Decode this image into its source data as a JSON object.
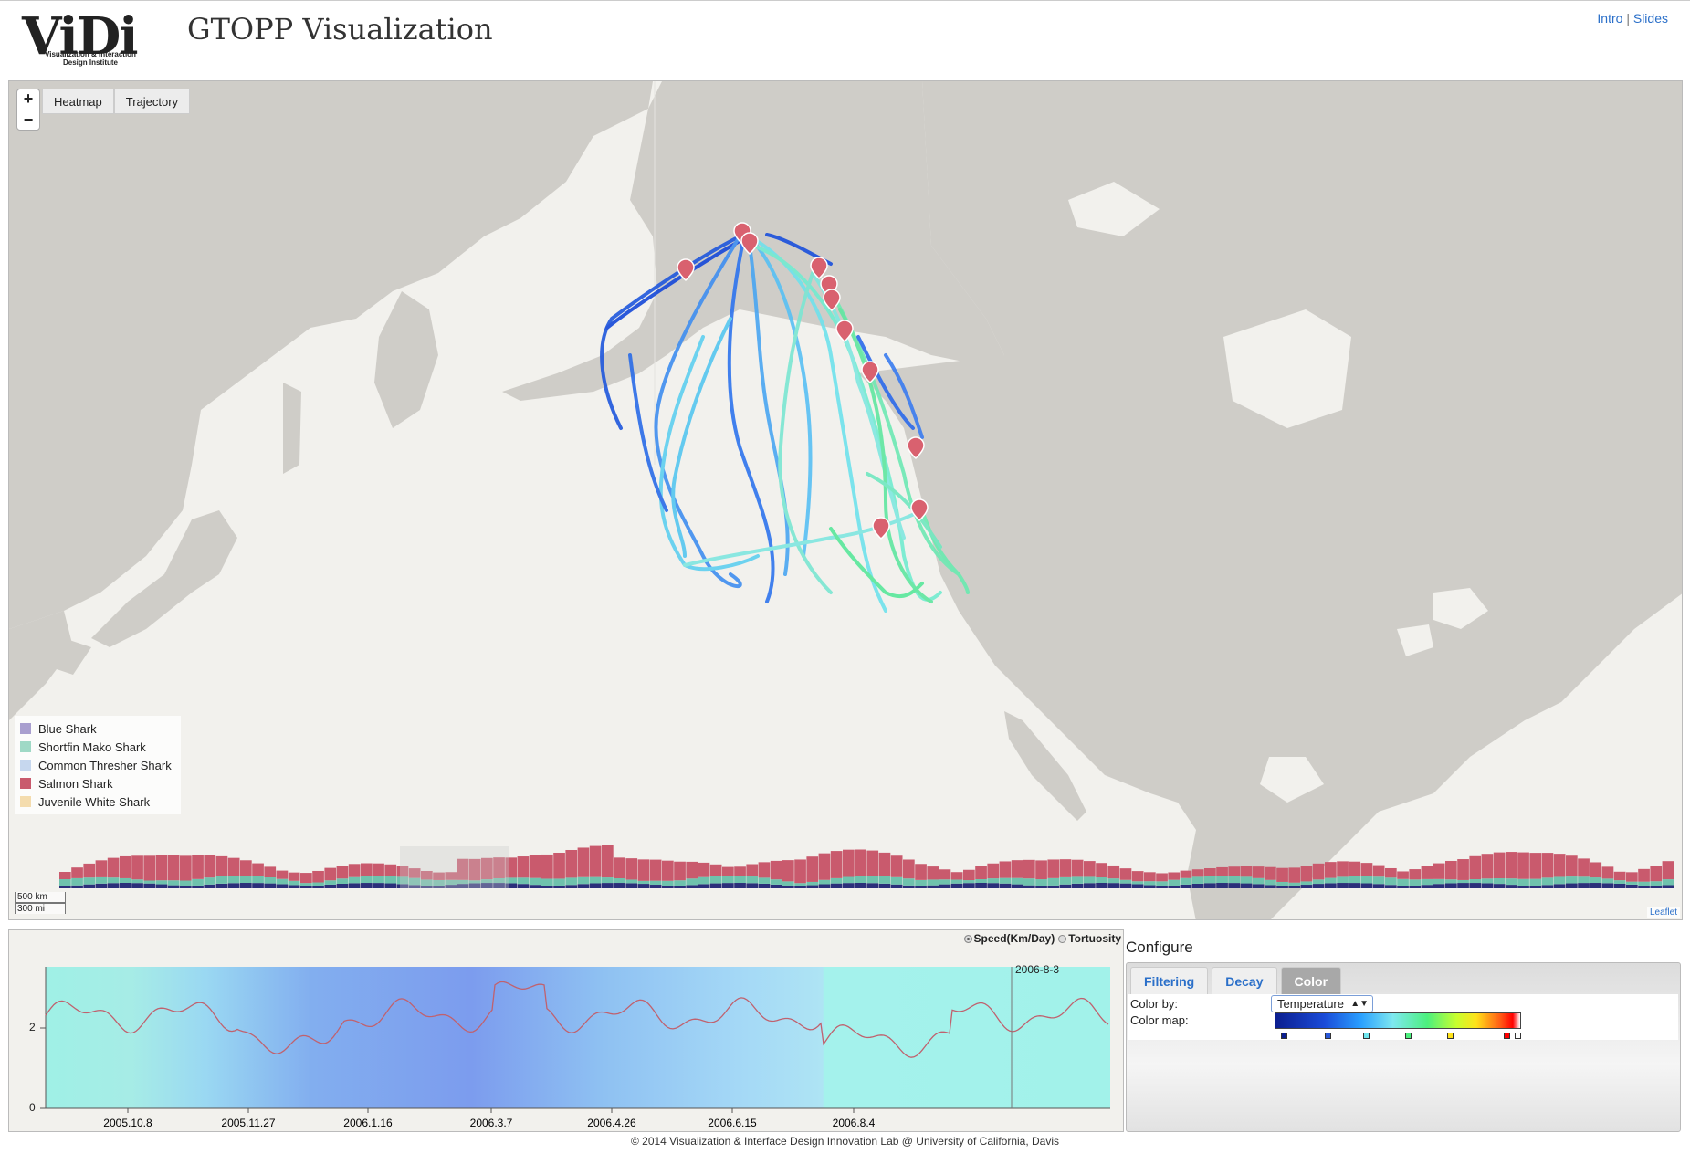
{
  "header": {
    "logo_text": "ViDi",
    "logo_subtitle": "Visualization & Interaction Design Institute",
    "title": "GTOPP Visualization",
    "links": [
      "Intro",
      "Slides"
    ],
    "link_separator": "|"
  },
  "map": {
    "zoom_in": "+",
    "zoom_out": "−",
    "layer_buttons": [
      "Heatmap",
      "Trajectory"
    ],
    "legend": [
      {
        "label": "Blue Shark",
        "color": "#a99fcf"
      },
      {
        "label": "Shortfin Mako Shark",
        "color": "#9fd9c6"
      },
      {
        "label": "Common Thresher Shark",
        "color": "#c6d7ee"
      },
      {
        "label": "Salmon Shark",
        "color": "#c95a6d"
      },
      {
        "label": "Juvenile White Shark",
        "color": "#f4dcae"
      }
    ],
    "scale": [
      "500 km",
      "300 mi"
    ],
    "attribution": "Leaflet",
    "trajectory_color_scale": [
      "#0d3fd6",
      "#2e7bf0",
      "#5cc8f5",
      "#6ff2c8",
      "#4ee88c",
      "#9be23a"
    ]
  },
  "timeseries": {
    "radio_options": [
      {
        "label": "Speed(Km/Day)",
        "selected": true
      },
      {
        "label": "Tortuosity",
        "selected": false
      }
    ],
    "y_ticks": [
      "2",
      "0"
    ],
    "x_ticks": [
      "2005.10.8",
      "2005.11.27",
      "2006.1.16",
      "2006.3.7",
      "2006.4.26",
      "2006.6.15",
      "2006.8.4"
    ],
    "cursor_label": "2006-8-3",
    "line_color": "#c0616e"
  },
  "configure": {
    "title": "Configure",
    "tabs": [
      {
        "label": "Filtering",
        "active": false
      },
      {
        "label": "Decay",
        "active": false
      },
      {
        "label": "Color",
        "active": true
      }
    ],
    "color_by_label": "Color by:",
    "color_by_value": "Temperature",
    "color_map_label": "Color map:",
    "colormap_stops": [
      "#0b1e8f",
      "#2a58d8",
      "#6fe6ee",
      "#4cf07e",
      "#ffe21a",
      "#ff0000",
      "#ffffff"
    ]
  },
  "footer": "© 2014 Visualization & Interface Design Innovation Lab @ University of California, Davis"
}
